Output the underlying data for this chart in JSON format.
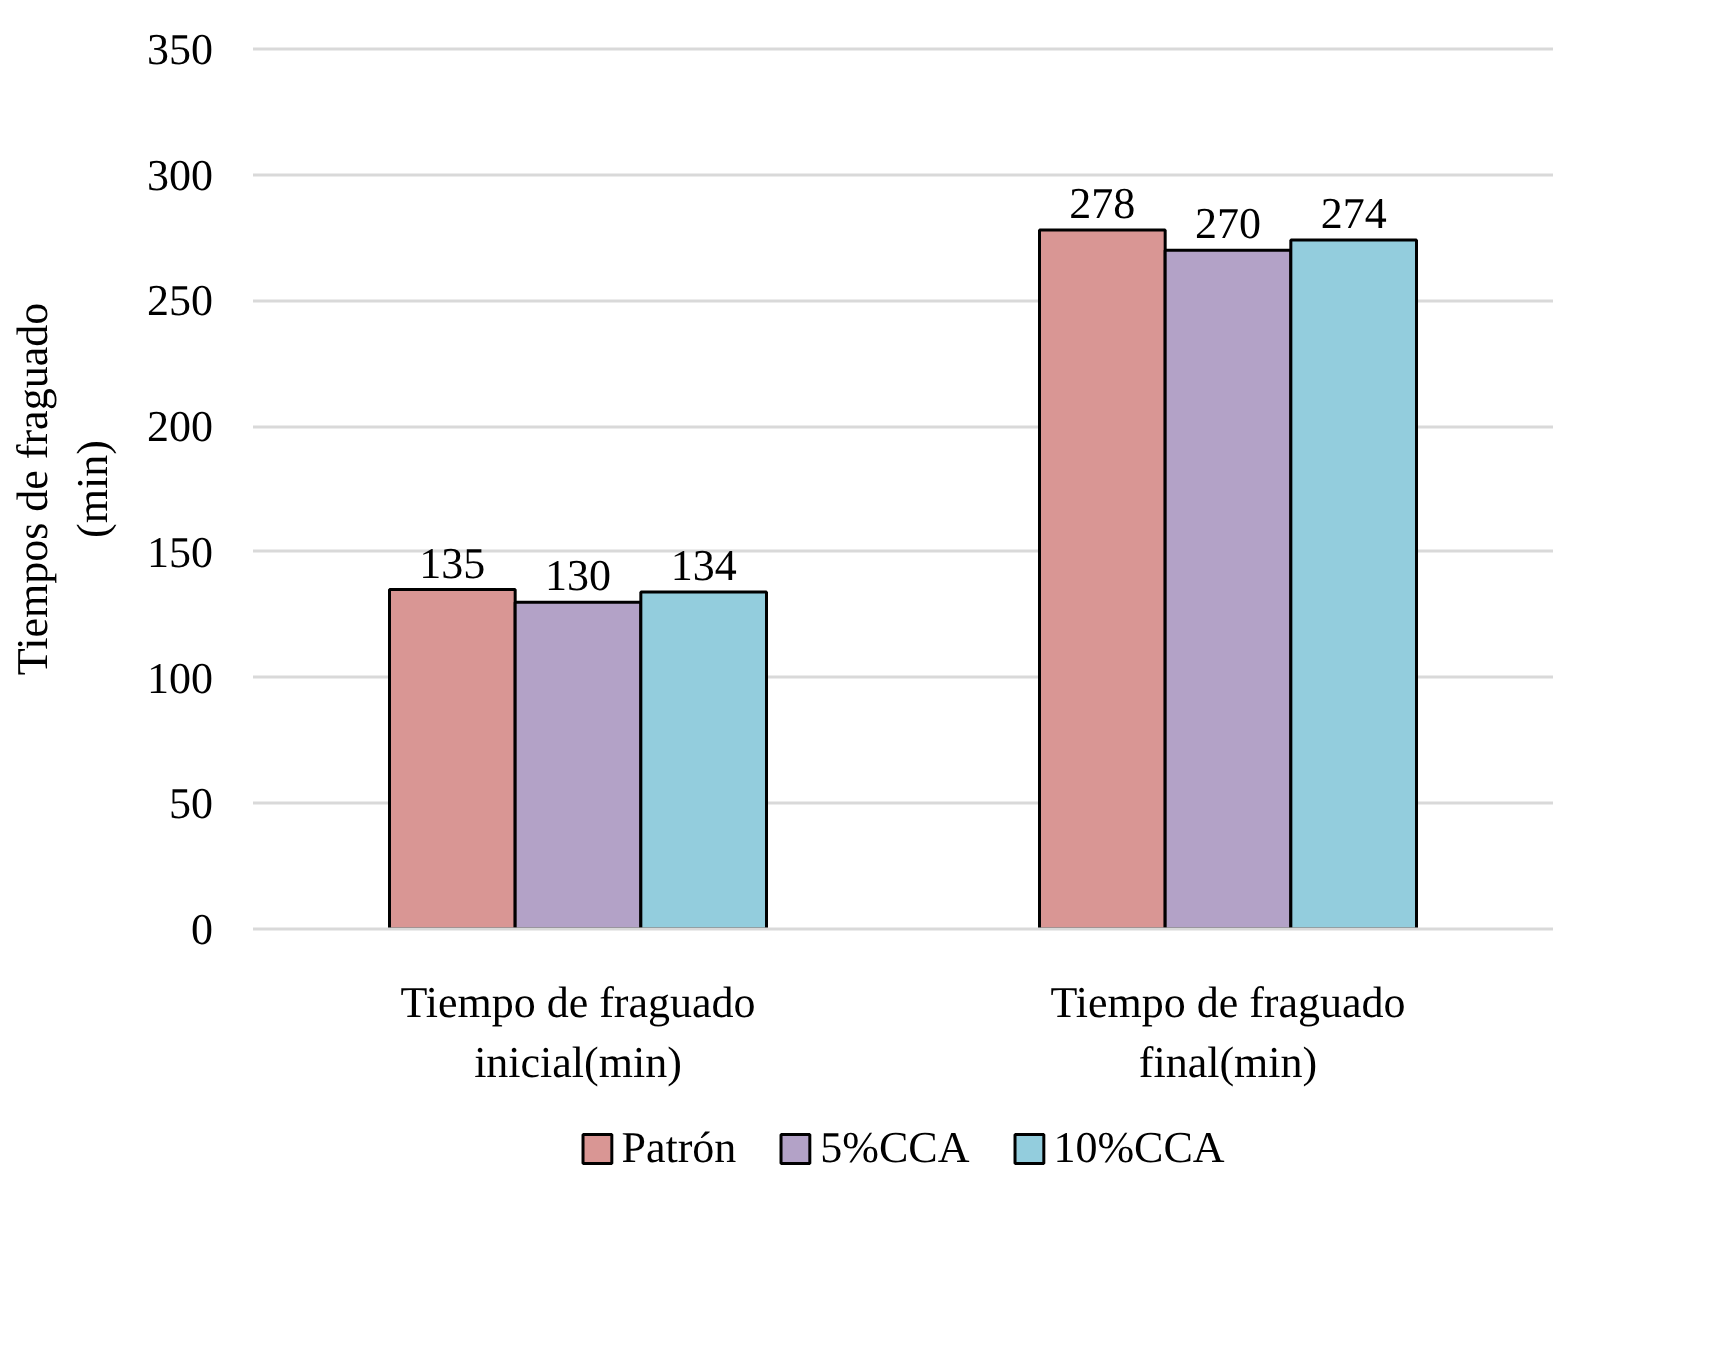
{
  "chart_data": {
    "type": "bar",
    "categories": [
      "Tiempo de fraguado inicial(min)",
      "Tiempo de fraguado final(min)"
    ],
    "series": [
      {
        "name": "Patrón",
        "color": "#d99694",
        "values": [
          135,
          278
        ]
      },
      {
        "name": "5%CCA",
        "color": "#b3a2c7",
        "values": [
          130,
          270
        ]
      },
      {
        "name": "10%CCA",
        "color": "#93cddd",
        "values": [
          134,
          274
        ]
      }
    ],
    "ylabel": "Tiempos de fraguado (min)",
    "ylim": [
      0,
      350
    ],
    "yticks": [
      0,
      50,
      100,
      150,
      200,
      250,
      300,
      350
    ],
    "grid": "y",
    "legend": "bottom",
    "data_labels": true
  }
}
